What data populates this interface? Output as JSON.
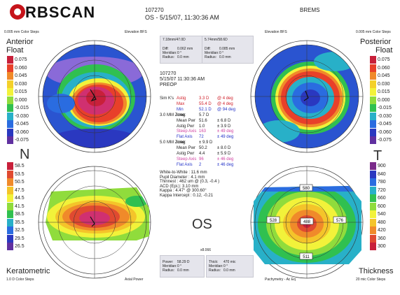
{
  "header": {
    "logo_text": "RBSCAN",
    "patient_id": "107270",
    "exam_line": "OS - 5/15/07, 11:30:36 AM",
    "name": "BREMS"
  },
  "anterior": {
    "top_left": "0.005 mm Color Steps",
    "top_right": "Elevation BFS",
    "title1": "Anterior",
    "title2": "Float",
    "scale": [
      "0.075",
      "0.060",
      "0.045",
      "0.030",
      "0.015",
      "0.000",
      "-0.015",
      "-0.030",
      "-0.045",
      "-0.060",
      "-0.075"
    ],
    "colors": [
      "#c8203a",
      "#e8402a",
      "#f08a2a",
      "#f4d02a",
      "#f2f23a",
      "#90dc3c",
      "#30c050",
      "#28b0c8",
      "#2a6ce0",
      "#2a38c0",
      "#6030a0"
    ],
    "box": {
      "bfs": "7.18mm/47.0D",
      "diff_label": "Diff:",
      "diff": "0.062 mm",
      "meridian_label": "Meridian:",
      "meridian": "0 °",
      "radius_label": "Radius:",
      "radius": "0.0 mm"
    }
  },
  "posterior": {
    "top_left": "Elevation BFS",
    "top_right": "0.005 mm Color Steps",
    "title1": "Posterior",
    "title2": "Float",
    "scale": [
      "0.075",
      "0.060",
      "0.045",
      "0.030",
      "0.015",
      "0.000",
      "-0.015",
      "-0.030",
      "-0.045",
      "-0.060",
      "-0.075"
    ],
    "colors": [
      "#c8203a",
      "#e8402a",
      "#f08a2a",
      "#f4d02a",
      "#f2f23a",
      "#90dc3c",
      "#30c050",
      "#28b0c8",
      "#2a6ce0",
      "#2a38c0",
      "#6030a0"
    ],
    "box": {
      "bfs": "5.74mm/58.6D",
      "diff_label": "Diff:",
      "diff": "0.085 mm",
      "meridian_label": "Meridian:",
      "meridian": "0 °",
      "radius_label": "Radius:",
      "radius": "0.0 mm"
    }
  },
  "keratometric": {
    "title": "Keratometric",
    "bottom_left": "1.0 D Color Steps",
    "bottom_right": "Axial Power",
    "scale": [
      "58.5",
      "53.5",
      "50.5",
      "47.5",
      "44.5",
      "41.5",
      "38.5",
      "35.5",
      "32.5",
      "29.5",
      "26.5"
    ],
    "colors": [
      "#c8203a",
      "#e04a30",
      "#f08a2a",
      "#f4c42a",
      "#f2f23a",
      "#90dc3c",
      "#30c050",
      "#28b0c8",
      "#2a6ce0",
      "#2a38c0",
      "#6030a0"
    ],
    "box": {
      "power_label": "Power:",
      "power": "58.29 D",
      "meridian_label": "Meridian:",
      "meridian": "0 °",
      "radius_label": "Radius:",
      "radius": "0.0 mm"
    }
  },
  "thickness": {
    "title": "Thickness",
    "bottom_left": "Pachymetry - Ac Eq",
    "bottom_right": "20 mic Color Steps",
    "scale": [
      "900",
      "840",
      "780",
      "720",
      "660",
      "600",
      "540",
      "480",
      "420",
      "360",
      "300"
    ],
    "colors": [
      "#7a2a8a",
      "#2a38c0",
      "#2a6ce0",
      "#28b0c8",
      "#30c050",
      "#90dc3c",
      "#f2f23a",
      "#f4c42a",
      "#f08a2a",
      "#e04a30",
      "#c8203a"
    ],
    "box": {
      "thick_label": "Thick:",
      "thick": "470 mic",
      "meridian_label": "Meridian:",
      "meridian": "0 °",
      "radius_label": "Radius:",
      "radius": "0.0 mm"
    },
    "values": {
      "top": "580",
      "left": "528",
      "center": "488",
      "right": "576",
      "bottom": "511"
    }
  },
  "center": {
    "id": "107270",
    "date": "5/15/07 11:30:36 AM",
    "status": "PREOP",
    "n": "N",
    "t": "T",
    "os": "OS",
    "small_label": "x8.066",
    "rows": [
      {
        "label": "Sim K's",
        "key": "Astig",
        "value": "3.3 D",
        "axis": "@ 4 deg",
        "cls": "red"
      },
      {
        "label": "",
        "key": "Max",
        "value": "55.4 D",
        "axis": "@ 4 deg",
        "cls": "red"
      },
      {
        "label": "",
        "key": "Min",
        "value": "52.1 D",
        "axis": "@ 94 deg",
        "cls": "blue"
      },
      {
        "label": "3.0 MM Zone:",
        "key": "Irreg",
        "value": "5.7 D",
        "axis": "",
        "cls": ""
      },
      {
        "label": "",
        "key": "Mean Pwr",
        "value": "51.6",
        "axis": "± 6.8 D",
        "cls": ""
      },
      {
        "label": "",
        "key": "Astig Pwr",
        "value": "1.0",
        "axis": "± 3.9 D",
        "cls": ""
      },
      {
        "label": "",
        "key": "Steep Axis",
        "value": "163",
        "axis": "± 49 deg",
        "cls": "pink"
      },
      {
        "label": "",
        "key": "Flat Axis",
        "value": "72",
        "axis": "± 49 deg",
        "cls": "blue"
      },
      {
        "label": "5.0 MM Zone:",
        "key": "Irreg",
        "value": "± 9.9 D",
        "axis": "",
        "cls": ""
      },
      {
        "label": "",
        "key": "Mean Pwr",
        "value": "50.2",
        "axis": "± 8.0 D",
        "cls": ""
      },
      {
        "label": "",
        "key": "Astig Pwr",
        "value": "4.4",
        "axis": "± 5.9 D",
        "cls": ""
      },
      {
        "label": "",
        "key": "Steep Axis",
        "value": "96",
        "axis": "± 46 deg",
        "cls": "pink"
      },
      {
        "label": "",
        "key": "Flat Axis",
        "value": "2",
        "axis": "± 46 deg",
        "cls": "blue"
      }
    ],
    "extra": [
      "White-to-White : 11.6 mm",
      "Pupil Diameter : 4.1 mm",
      "Thinnest : 462 um @ (0.3, -0.4 )",
      "ACD (Epi.): 3.10 mm",
      "Kappa : 4.47° @ 300.60°",
      "Kappa Intercept : 0.12, -0.21"
    ]
  }
}
